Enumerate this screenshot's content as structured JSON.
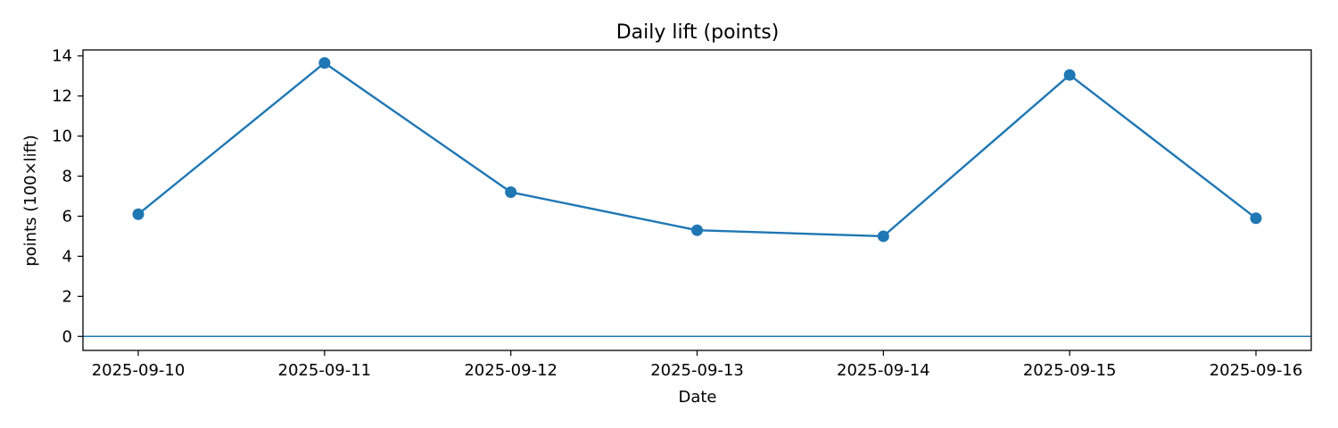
{
  "chart_data": {
    "type": "line",
    "title": "Daily lift (points)",
    "xlabel": "Date",
    "ylabel": "points (100×lift)",
    "categories": [
      "2025-09-10",
      "2025-09-11",
      "2025-09-12",
      "2025-09-13",
      "2025-09-14",
      "2025-09-15",
      "2025-09-16"
    ],
    "series": [
      {
        "values": [
          6.1,
          13.65,
          7.2,
          5.3,
          5.0,
          13.05,
          5.9
        ],
        "color": "#1f77b4"
      }
    ],
    "ylim": [
      -0.7,
      14.3
    ],
    "yticks": [
      0,
      2,
      4,
      6,
      8,
      10,
      12,
      14
    ],
    "reference_line": {
      "y": 0,
      "color": "#1f77b4"
    },
    "grid": false,
    "legend": "none"
  }
}
